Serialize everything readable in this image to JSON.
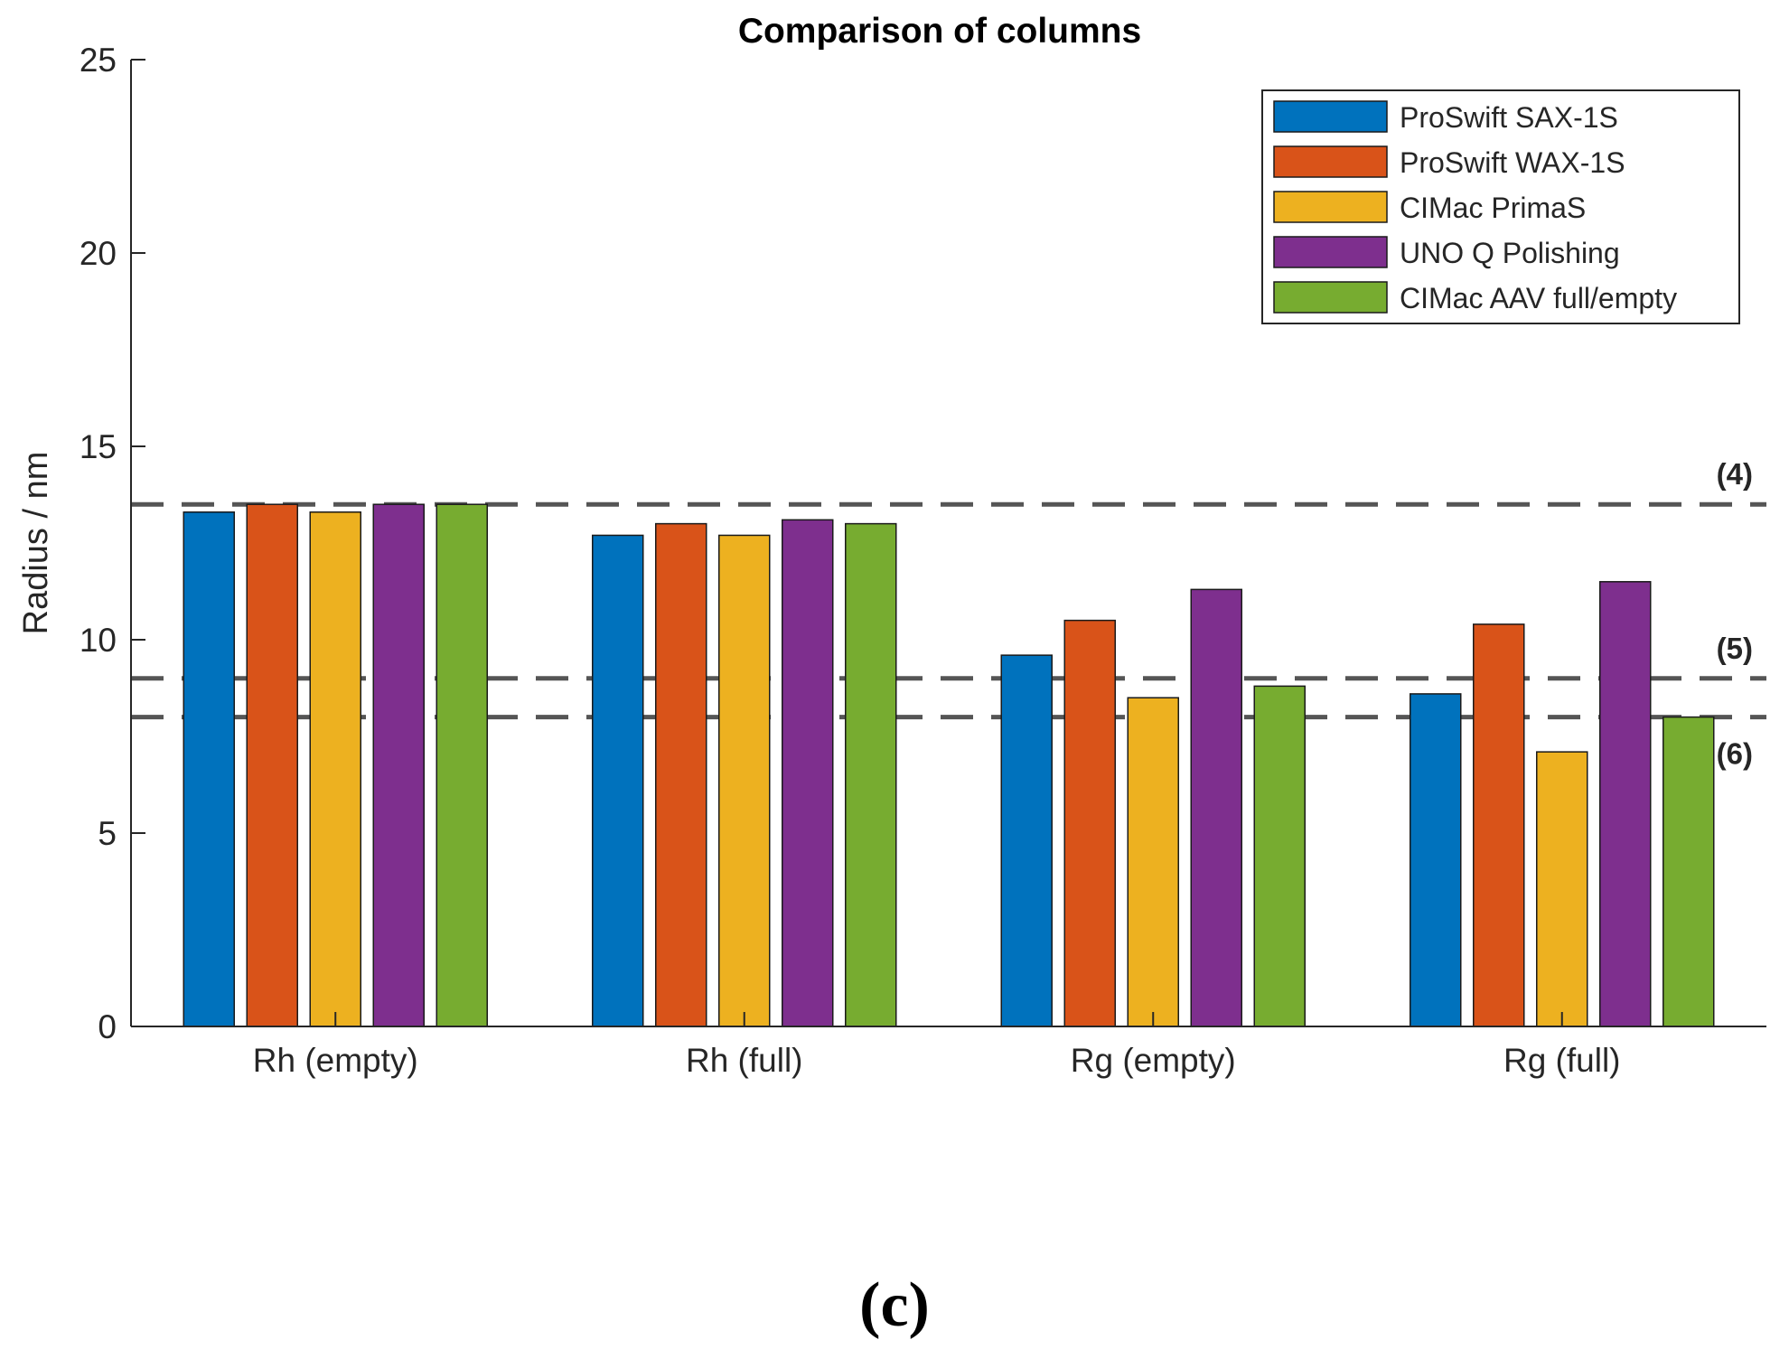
{
  "chart_data": {
    "type": "bar",
    "title": "Comparison of columns",
    "xlabel": "",
    "ylabel": "Radius / nm",
    "ylim": [
      0,
      25
    ],
    "yticks": [
      0,
      5,
      10,
      15,
      20,
      25
    ],
    "categories": [
      "Rh (empty)",
      "Rh (full)",
      "Rg (empty)",
      "Rg (full)"
    ],
    "series": [
      {
        "name": "ProSwift SAX-1S",
        "color": "#0072BD",
        "values": [
          13.3,
          12.7,
          9.6,
          8.6
        ]
      },
      {
        "name": "ProSwift WAX-1S",
        "color": "#D95319",
        "values": [
          13.5,
          13.0,
          10.5,
          10.4
        ]
      },
      {
        "name": "CIMac PrimaS",
        "color": "#EDB120",
        "values": [
          13.3,
          12.7,
          8.5,
          7.1
        ]
      },
      {
        "name": "UNO Q Polishing",
        "color": "#7E2F8E",
        "values": [
          13.5,
          13.1,
          11.3,
          11.5
        ]
      },
      {
        "name": "CIMac AAV full/empty",
        "color": "#77AC30",
        "values": [
          13.5,
          13.0,
          8.8,
          8.0
        ]
      }
    ],
    "reference_lines": [
      {
        "label": "(4)",
        "value": 13.5
      },
      {
        "label": "(5)",
        "value": 9.0
      },
      {
        "label": "(6)",
        "value": 8.0
      }
    ],
    "legend_position": "top-right",
    "grid": false
  },
  "panel_label": "(c)"
}
